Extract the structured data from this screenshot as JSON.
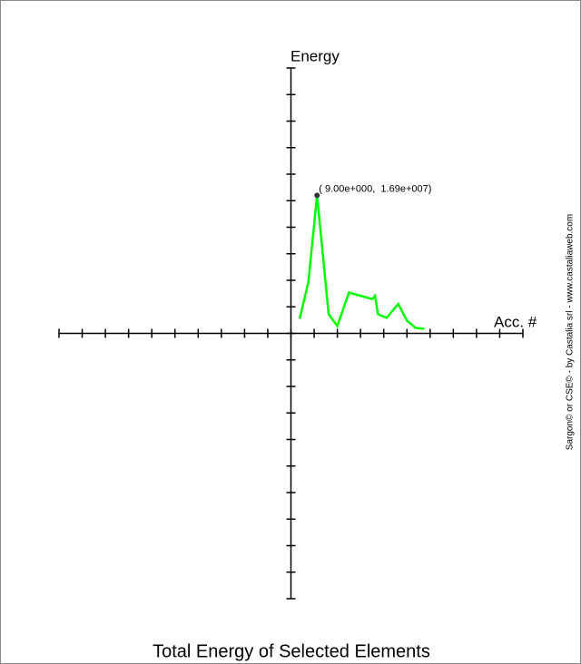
{
  "chart_data": {
    "type": "line",
    "title": "Total Energy of Selected Elements",
    "x_label": "Acc. #",
    "y_label": "Energy",
    "annotation": "( 9.00e+000,  1.69e+007)",
    "credit": "Sargon© or CSE© - by Castalia srl - www.castaliaweb.com",
    "x": [
      3,
      6,
      9,
      13,
      16,
      20,
      28,
      29,
      30,
      33,
      37,
      40,
      43,
      46
    ],
    "series": [
      {
        "color": "#00ff00",
        "values": [
          1790000,
          6250000,
          16900000,
          2350000,
          900000,
          5000000,
          4200000,
          4600000,
          2350000,
          1900000,
          3600000,
          1560000,
          670000,
          560000
        ]
      }
    ],
    "xlim": [
      -80,
      80
    ],
    "xticks": [
      -80,
      -72,
      -64,
      -56,
      -48,
      -40,
      -32,
      -24,
      -16,
      -8,
      0,
      8,
      16,
      24,
      32,
      40,
      48,
      56,
      64,
      72,
      80
    ],
    "ylim": [
      -32500000,
      32500000
    ],
    "yticks": [
      -32500000,
      -29250000,
      -26000000,
      -22750000,
      -19500000,
      -16250000,
      -13000000,
      -9750000,
      -6500000,
      -3250000,
      0,
      3250000,
      6500000,
      9750000,
      13000000,
      16250000,
      19500000,
      22750000,
      26000000,
      29250000,
      32500000
    ]
  }
}
